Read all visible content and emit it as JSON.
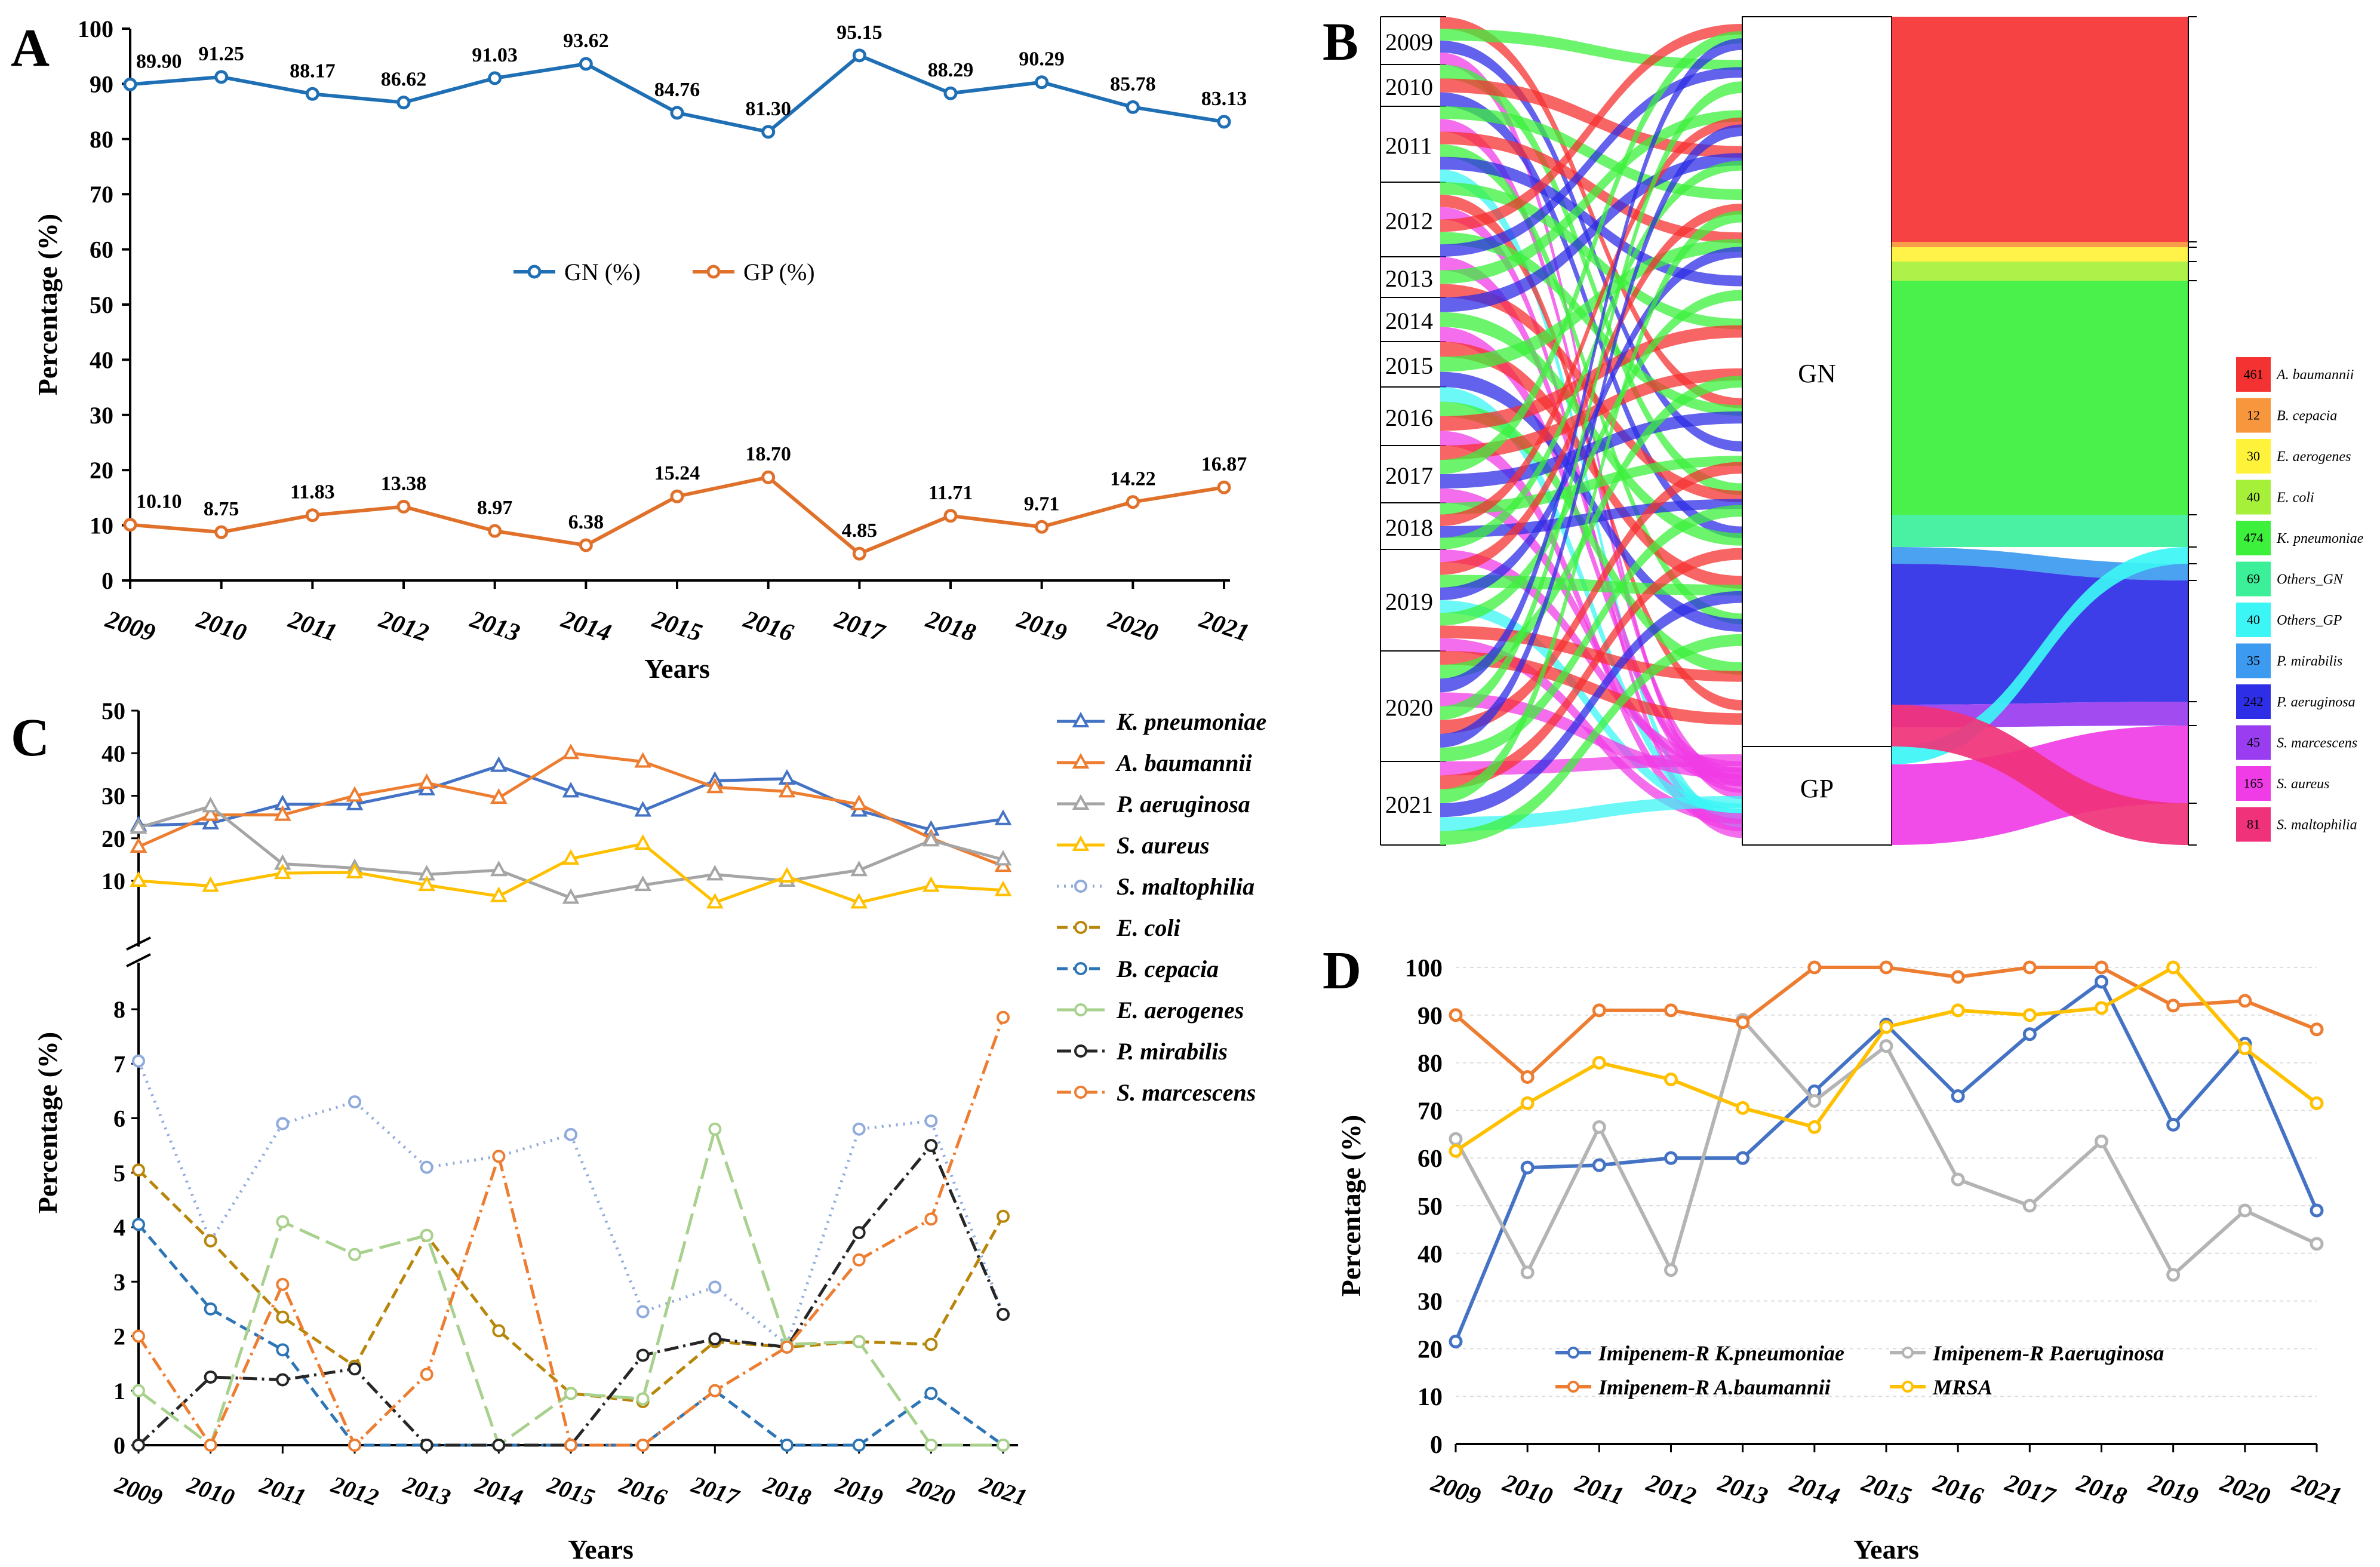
{
  "panels": {
    "A": "A",
    "B": "B",
    "C": "C",
    "D": "D"
  },
  "chart_data": [
    {
      "id": "A",
      "type": "line",
      "categories": [
        "2009",
        "2010",
        "2011",
        "2012",
        "2013",
        "2014",
        "2015",
        "2016",
        "2017",
        "2018",
        "2019",
        "2020",
        "2021"
      ],
      "series": [
        {
          "name": "GN (%)",
          "color": "#1F6FB4",
          "values": [
            89.9,
            91.25,
            88.17,
            86.62,
            91.03,
            93.62,
            84.76,
            81.3,
            95.15,
            88.29,
            90.29,
            85.78,
            83.13
          ],
          "labels": [
            "89.90",
            "91.25",
            "88.17",
            "86.62",
            "91.03",
            "93.62",
            "84.76",
            "81.30",
            "95.15",
            "88.29",
            "90.29",
            "85.78",
            "83.13"
          ]
        },
        {
          "name": "GP (%)",
          "color": "#E0712B",
          "values": [
            10.1,
            8.75,
            11.83,
            13.38,
            8.97,
            6.38,
            15.24,
            18.7,
            4.85,
            11.71,
            9.71,
            14.22,
            16.87
          ],
          "labels": [
            "10.10",
            "8.75",
            "11.83",
            "13.38",
            "8.97",
            "6.38",
            "15.24",
            "18.70",
            "4.85",
            "11.71",
            "9.71",
            "14.22",
            "16.87"
          ]
        }
      ],
      "yticks": [
        "0",
        "10",
        "20",
        "30",
        "40",
        "50",
        "60",
        "70",
        "80",
        "90",
        "100"
      ],
      "ylim": [
        0,
        100
      ],
      "xlabel": "Years",
      "ylabel": "Percentage (%)",
      "legend": "center"
    },
    {
      "id": "B",
      "type": "sankey",
      "years": [
        "2009",
        "2010",
        "2011",
        "2012",
        "2013",
        "2014",
        "2015",
        "2016",
        "2017",
        "2018",
        "2019",
        "2020",
        "2021"
      ],
      "groups": [
        "GN",
        "GP"
      ],
      "legend": [
        {
          "count": "461",
          "name": "A. baumannii",
          "color": "#F53232"
        },
        {
          "count": "12",
          "name": "B. cepacia",
          "color": "#F7963C"
        },
        {
          "count": "30",
          "name": "E. aerogenes",
          "color": "#FFF23A"
        },
        {
          "count": "40",
          "name": "E. coli",
          "color": "#A6F03A"
        },
        {
          "count": "474",
          "name": "K. pneumoniae",
          "color": "#3CF03C"
        },
        {
          "count": "69",
          "name": "Others_GN",
          "color": "#3CF09A"
        },
        {
          "count": "40",
          "name": "Others_GP",
          "color": "#3CF5F5"
        },
        {
          "count": "35",
          "name": "P. mirabilis",
          "color": "#3C9AF0"
        },
        {
          "count": "242",
          "name": "P. aeruginosa",
          "color": "#2E2EE6"
        },
        {
          "count": "45",
          "name": "S. marcescens",
          "color": "#9A3CF0"
        },
        {
          "count": "165",
          "name": "S. aureus",
          "color": "#F03CE6"
        },
        {
          "count": "81",
          "name": "S. maltophilia",
          "color": "#F0327A"
        }
      ]
    },
    {
      "id": "C",
      "type": "line",
      "categories": [
        "2009",
        "2010",
        "2011",
        "2012",
        "2013",
        "2014",
        "2015",
        "2016",
        "2017",
        "2018",
        "2019",
        "2020",
        "2021"
      ],
      "upper_yticks": [
        "10",
        "20",
        "30",
        "40",
        "50"
      ],
      "lower_yticks": [
        "0",
        "1",
        "2",
        "3",
        "4",
        "5",
        "6",
        "7",
        "8"
      ],
      "xlabel": "Years",
      "ylabel": "Percentage (%)",
      "series": [
        {
          "name": "K. pneumoniae",
          "color": "#4472C4",
          "marker": "triangle",
          "dash": "",
          "axis": "upper",
          "values": [
            23,
            23.5,
            28,
            28,
            31.5,
            37,
            31,
            26.5,
            33.5,
            34,
            26.5,
            22,
            24.5
          ]
        },
        {
          "name": "A. baumannii",
          "color": "#ED7D31",
          "marker": "triangle",
          "dash": "",
          "axis": "upper",
          "values": [
            18,
            25.5,
            25.5,
            30,
            33,
            29.5,
            40,
            38,
            32,
            31,
            28,
            20,
            13.5
          ]
        },
        {
          "name": "P. aeruginosa",
          "color": "#A5A5A5",
          "marker": "triangle",
          "dash": "",
          "axis": "upper",
          "values": [
            22.5,
            27.5,
            14,
            13,
            11.5,
            12.5,
            6,
            9,
            11.5,
            10,
            12.5,
            19.5,
            15
          ]
        },
        {
          "name": "S. aureus",
          "color": "#FFC000",
          "marker": "triangle",
          "dash": "",
          "axis": "upper",
          "values": [
            10,
            8.8,
            11.8,
            12,
            9,
            6.4,
            15.2,
            18.7,
            4.9,
            11,
            4.9,
            8.8,
            7.8
          ]
        },
        {
          "name": "S. maltophilia",
          "color": "#8FAADC",
          "marker": "circle",
          "dash": "3,9",
          "axis": "lower",
          "values": [
            7.05,
            3.75,
            5.9,
            6.3,
            5.1,
            5.3,
            5.7,
            2.45,
            2.9,
            1.85,
            5.8,
            5.95,
            2.4
          ]
        },
        {
          "name": "E. coli",
          "color": "#B8860B",
          "marker": "circle",
          "dash": "18,9",
          "axis": "lower",
          "values": [
            5.05,
            3.75,
            2.35,
            1.45,
            3.85,
            2.1,
            0.95,
            0.8,
            1.9,
            1.8,
            1.9,
            1.85,
            4.2
          ]
        },
        {
          "name": "B. cepacia",
          "color": "#2E75B6",
          "marker": "circle",
          "dash": "18,9",
          "axis": "lower",
          "values": [
            4.05,
            2.5,
            1.75,
            0,
            0,
            0,
            0,
            0,
            1,
            0,
            0,
            0.95,
            0
          ]
        },
        {
          "name": "E. aerogenes",
          "color": "#A9D18E",
          "marker": "circle",
          "dash": "36,12",
          "axis": "lower",
          "values": [
            1,
            0,
            4.1,
            3.5,
            3.85,
            0,
            0.95,
            0.85,
            5.8,
            1.85,
            1.9,
            0,
            0
          ]
        },
        {
          "name": "P. mirabilis",
          "color": "#262626",
          "marker": "circle",
          "dash": "24,8,4,8",
          "axis": "lower",
          "values": [
            0,
            1.25,
            1.2,
            1.4,
            0,
            0,
            0,
            1.65,
            1.95,
            1.8,
            3.9,
            5.5,
            2.4
          ]
        },
        {
          "name": "S. marcescens",
          "color": "#ED7D31",
          "marker": "circle",
          "dash": "24,8,4,8",
          "axis": "lower",
          "values": [
            2,
            0,
            2.95,
            0,
            1.3,
            5.3,
            0,
            0,
            1,
            1.8,
            3.4,
            4.15,
            7.85
          ]
        }
      ]
    },
    {
      "id": "D",
      "type": "line",
      "categories": [
        "2009",
        "2010",
        "2011",
        "2012",
        "2013",
        "2014",
        "2015",
        "2016",
        "2017",
        "2018",
        "2019",
        "2020",
        "2021"
      ],
      "yticks": [
        "0",
        "10",
        "20",
        "30",
        "40",
        "50",
        "60",
        "70",
        "80",
        "90",
        "100"
      ],
      "ylim": [
        0,
        100
      ],
      "xlabel": "Years",
      "ylabel": "Percentage (%)",
      "series": [
        {
          "name": "Imipenem-R K.pneumoniae",
          "color": "#4472C4",
          "values": [
            21.5,
            58,
            58.5,
            60,
            60,
            74,
            88,
            73,
            86,
            97,
            67,
            84,
            49
          ]
        },
        {
          "name": "Imipenem-R P.aeruginosa",
          "color": "#B4B4B4",
          "values": [
            64,
            36,
            66.5,
            36.5,
            89,
            72,
            83.5,
            55.5,
            50,
            63.5,
            35.5,
            49,
            42
          ]
        },
        {
          "name": "Imipenem-R A.baumannii",
          "color": "#ED7D31",
          "values": [
            90,
            77,
            91,
            91,
            88.5,
            100,
            100,
            98,
            100,
            100,
            92,
            93,
            87
          ]
        },
        {
          "name": "MRSA",
          "color": "#FFC000",
          "values": [
            61.5,
            71.5,
            80,
            76.5,
            70.5,
            66.5,
            87.5,
            91,
            90,
            91.5,
            100,
            83,
            71.5
          ]
        }
      ]
    }
  ]
}
